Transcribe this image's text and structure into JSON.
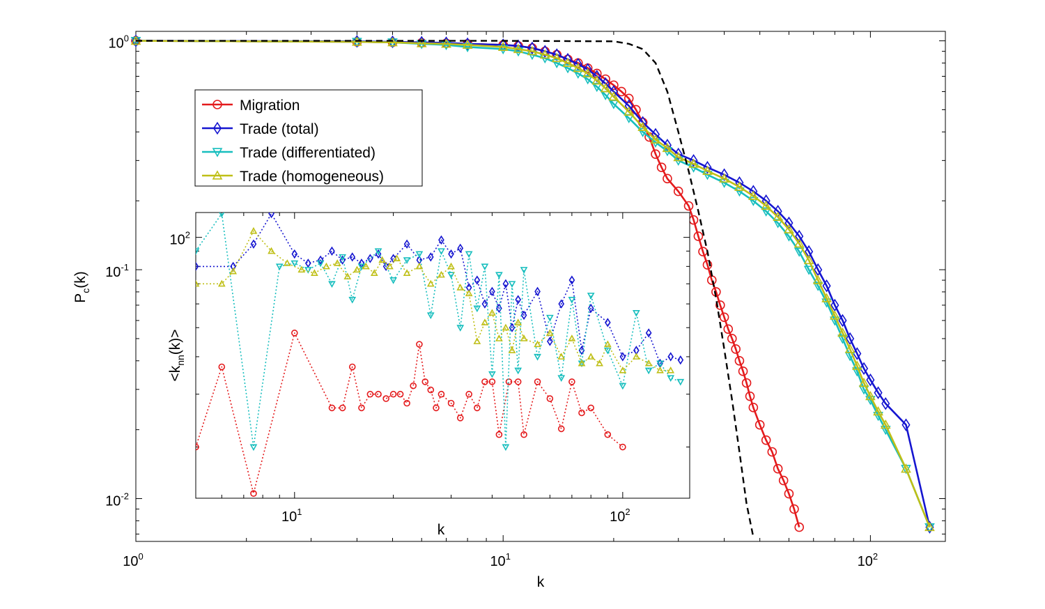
{
  "chart_data": [
    {
      "type": "line",
      "role": "main",
      "xlabel": "k",
      "ylabel": {
        "base": "P",
        "sub": "c",
        "tail": "(k)"
      },
      "xscale": "log",
      "yscale": "log",
      "xlim": [
        1,
        160
      ],
      "ylim": [
        0.0065,
        1.1
      ],
      "xticks": [
        {
          "value": 1,
          "base": "10",
          "exp": "0"
        },
        {
          "value": 10,
          "base": "10",
          "exp": "1"
        },
        {
          "value": 100,
          "base": "10",
          "exp": "2"
        }
      ],
      "yticks": [
        {
          "value": 1,
          "base": "10",
          "exp": "0"
        },
        {
          "value": 0.1,
          "base": "10",
          "exp": "-1"
        },
        {
          "value": 0.01,
          "base": "10",
          "exp": "-2"
        }
      ],
      "grid": false,
      "legend_position": "upper-left",
      "series": [
        {
          "name": "Migration",
          "color": "#e41a1c",
          "marker": "circle",
          "x": [
            1,
            4,
            5,
            6,
            7,
            8,
            10,
            11,
            12,
            13,
            14,
            15,
            16,
            17,
            18,
            19,
            20,
            21,
            22,
            23,
            24,
            25,
            26,
            27,
            28,
            30,
            32,
            33,
            34,
            35,
            36,
            37,
            38,
            39,
            40,
            41,
            42,
            43,
            44,
            45,
            46,
            47,
            48,
            50,
            52,
            54,
            56,
            58,
            60,
            62,
            64
          ],
          "y": [
            1,
            0.99,
            0.985,
            0.98,
            0.975,
            0.97,
            0.96,
            0.95,
            0.93,
            0.9,
            0.87,
            0.83,
            0.8,
            0.76,
            0.72,
            0.68,
            0.64,
            0.6,
            0.56,
            0.5,
            0.44,
            0.38,
            0.32,
            0.28,
            0.25,
            0.22,
            0.19,
            0.165,
            0.14,
            0.12,
            0.105,
            0.09,
            0.08,
            0.07,
            0.062,
            0.055,
            0.05,
            0.045,
            0.04,
            0.036,
            0.032,
            0.028,
            0.025,
            0.021,
            0.018,
            0.016,
            0.0135,
            0.012,
            0.0105,
            0.009,
            0.0075
          ]
        },
        {
          "name": "Trade (total)",
          "color": "#1515d0",
          "marker": "diamond",
          "x": [
            1,
            4,
            5,
            6,
            7,
            8,
            10,
            11,
            12,
            13,
            14,
            15,
            16,
            17,
            18,
            19,
            20,
            22,
            24,
            26,
            28,
            30,
            33,
            36,
            40,
            44,
            48,
            52,
            56,
            60,
            64,
            68,
            72,
            76,
            80,
            84,
            88,
            92,
            96,
            100,
            105,
            110,
            125,
            145
          ],
          "y": [
            1,
            0.995,
            0.99,
            0.985,
            0.98,
            0.97,
            0.96,
            0.95,
            0.93,
            0.9,
            0.87,
            0.83,
            0.79,
            0.75,
            0.7,
            0.65,
            0.6,
            0.52,
            0.44,
            0.39,
            0.35,
            0.32,
            0.3,
            0.28,
            0.26,
            0.24,
            0.22,
            0.2,
            0.18,
            0.16,
            0.14,
            0.12,
            0.1,
            0.085,
            0.07,
            0.06,
            0.05,
            0.043,
            0.037,
            0.033,
            0.029,
            0.026,
            0.021,
            0.0075
          ]
        },
        {
          "name": "Trade (differentiated)",
          "color": "#17bebe",
          "marker": "triangle-down",
          "x": [
            1,
            4,
            5,
            6,
            7,
            8,
            10,
            11,
            12,
            13,
            14,
            15,
            16,
            17,
            18,
            19,
            20,
            22,
            24,
            26,
            28,
            30,
            33,
            36,
            40,
            44,
            48,
            52,
            56,
            60,
            64,
            68,
            72,
            76,
            80,
            84,
            88,
            92,
            96,
            100,
            105,
            110,
            125,
            145
          ],
          "y": [
            1,
            0.99,
            0.985,
            0.97,
            0.96,
            0.94,
            0.92,
            0.9,
            0.87,
            0.84,
            0.8,
            0.76,
            0.72,
            0.68,
            0.63,
            0.58,
            0.53,
            0.46,
            0.4,
            0.36,
            0.33,
            0.3,
            0.28,
            0.26,
            0.24,
            0.22,
            0.2,
            0.18,
            0.16,
            0.14,
            0.12,
            0.1,
            0.085,
            0.072,
            0.06,
            0.05,
            0.042,
            0.036,
            0.03,
            0.027,
            0.023,
            0.02,
            0.0135,
            0.0075
          ]
        },
        {
          "name": "Trade (homogeneous)",
          "color": "#bfbf17",
          "marker": "triangle-up",
          "x": [
            1,
            4,
            5,
            6,
            7,
            8,
            10,
            11,
            12,
            13,
            14,
            15,
            16,
            17,
            18,
            19,
            20,
            22,
            24,
            26,
            28,
            30,
            33,
            36,
            40,
            44,
            48,
            52,
            56,
            60,
            64,
            68,
            72,
            76,
            80,
            84,
            88,
            92,
            96,
            100,
            105,
            110,
            125,
            145
          ],
          "y": [
            1,
            0.99,
            0.985,
            0.975,
            0.97,
            0.96,
            0.94,
            0.92,
            0.9,
            0.87,
            0.84,
            0.8,
            0.76,
            0.72,
            0.67,
            0.62,
            0.57,
            0.49,
            0.42,
            0.37,
            0.34,
            0.31,
            0.29,
            0.27,
            0.25,
            0.23,
            0.21,
            0.19,
            0.17,
            0.15,
            0.13,
            0.11,
            0.09,
            0.075,
            0.063,
            0.053,
            0.045,
            0.038,
            0.032,
            0.028,
            0.024,
            0.021,
            0.0135,
            0.0075
          ]
        },
        {
          "name": "",
          "color": "#000000",
          "style": "dashed",
          "x": [
            1,
            10,
            20,
            22,
            24,
            26,
            28,
            30,
            32,
            34,
            36,
            38,
            40,
            42,
            44,
            46,
            48
          ],
          "y": [
            1,
            1,
            0.995,
            0.97,
            0.92,
            0.8,
            0.6,
            0.4,
            0.27,
            0.18,
            0.12,
            0.075,
            0.045,
            0.027,
            0.016,
            0.0095,
            0.0068
          ]
        }
      ]
    },
    {
      "type": "line",
      "role": "inset",
      "xlabel": "k",
      "ylabel": {
        "base": "<k",
        "sub": "nn",
        "tail": "(k)>"
      },
      "xscale": "log",
      "yscale": "log",
      "xlim": [
        5,
        160
      ],
      "ylim": [
        13.5,
        121
      ],
      "xticks": [
        {
          "value": 10,
          "base": "10",
          "exp": "1"
        },
        {
          "value": 100,
          "base": "10",
          "exp": "2"
        }
      ],
      "yticks": [
        {
          "value": 100,
          "base": "10",
          "exp": "2"
        }
      ],
      "grid": false,
      "series": [
        {
          "name": "Migration",
          "color": "#e41a1c",
          "marker": "circle",
          "x": [
            5,
            6,
            7.5,
            10,
            13,
            14,
            15,
            16,
            17,
            18,
            19,
            20,
            21,
            22,
            23,
            24,
            25,
            26,
            27,
            28,
            30,
            32,
            34,
            36,
            38,
            40,
            42,
            45,
            48,
            50,
            55,
            60,
            65,
            70,
            75,
            80,
            90,
            100
          ],
          "y": [
            20,
            37,
            14,
            48,
            27,
            27,
            37,
            27,
            30,
            30,
            29,
            30,
            30,
            28,
            32,
            44,
            33,
            31,
            27,
            30,
            28,
            25,
            30,
            27,
            33,
            33,
            22,
            33,
            33,
            22,
            33,
            29,
            23,
            33,
            26,
            27,
            22,
            20
          ]
        },
        {
          "name": "Trade (total)",
          "color": "#1515d0",
          "marker": "diamond",
          "x": [
            5,
            6.5,
            7.5,
            8.5,
            10,
            11,
            12,
            13,
            14,
            15,
            16,
            17,
            18,
            19,
            20,
            22,
            24,
            26,
            28,
            30,
            32,
            34,
            36,
            38,
            40,
            42,
            44,
            46,
            48,
            50,
            55,
            60,
            65,
            70,
            75,
            80,
            90,
            100,
            110,
            120,
            130,
            140,
            150
          ],
          "y": [
            80,
            80,
            95,
            120,
            88,
            82,
            84,
            90,
            84,
            86,
            82,
            85,
            88,
            80,
            85,
            95,
            84,
            86,
            98,
            88,
            92,
            68,
            72,
            60,
            66,
            58,
            70,
            50,
            62,
            55,
            66,
            45,
            60,
            72,
            42,
            58,
            52,
            40,
            42,
            48,
            38,
            40,
            39
          ]
        },
        {
          "name": "Trade (differentiated)",
          "color": "#17bebe",
          "marker": "triangle-down",
          "x": [
            5,
            6,
            7.5,
            9,
            10,
            11,
            12,
            13,
            14,
            15,
            16,
            18,
            20,
            22,
            24,
            26,
            28,
            30,
            32,
            34,
            36,
            38,
            40,
            42,
            44,
            46,
            48,
            50,
            55,
            60,
            65,
            70,
            75,
            80,
            90,
            100,
            110,
            120,
            130,
            140,
            150
          ],
          "y": [
            90,
            120,
            20,
            80,
            82,
            78,
            82,
            70,
            86,
            62,
            80,
            90,
            72,
            84,
            88,
            55,
            90,
            75,
            50,
            88,
            58,
            80,
            35,
            75,
            20,
            70,
            36,
            78,
            40,
            54,
            34,
            62,
            38,
            64,
            42,
            32,
            56,
            36,
            38,
            34,
            33
          ]
        },
        {
          "name": "Trade (homogeneous)",
          "color": "#bfbf17",
          "marker": "triangle-up",
          "x": [
            5,
            6,
            6.5,
            7.5,
            8.5,
            9.5,
            10.5,
            11.5,
            12.5,
            13.5,
            14.5,
            15.5,
            16.5,
            17.5,
            18.5,
            19.5,
            20.5,
            22,
            24,
            26,
            28,
            30,
            32,
            34,
            36,
            38,
            40,
            42,
            44,
            46,
            48,
            50,
            55,
            60,
            65,
            70,
            75,
            80,
            85,
            90,
            100,
            110,
            120,
            130,
            140
          ],
          "y": [
            70,
            70,
            77,
            105,
            90,
            82,
            78,
            76,
            80,
            82,
            74,
            78,
            80,
            76,
            84,
            80,
            85,
            76,
            80,
            70,
            75,
            80,
            68,
            65,
            45,
            52,
            56,
            46,
            50,
            42,
            52,
            46,
            44,
            48,
            40,
            46,
            38,
            40,
            38,
            44,
            36,
            40,
            38,
            36,
            36
          ]
        }
      ]
    }
  ]
}
